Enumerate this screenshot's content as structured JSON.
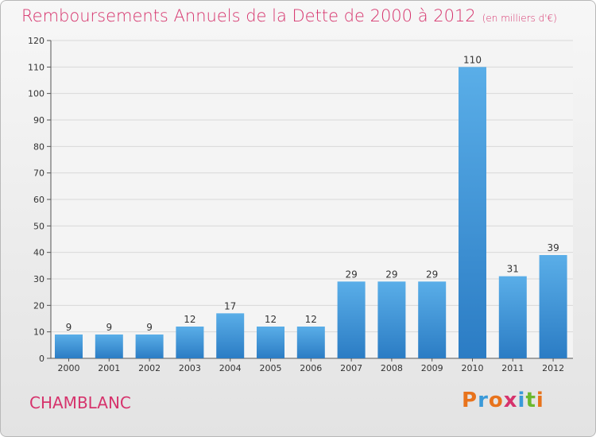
{
  "header": {
    "title": "Remboursements Annuels de la Dette de 2000 à 2012",
    "unit": "(en milliers d'€)"
  },
  "footer": {
    "commune": "CHAMBLANC",
    "logo": "Proxiti",
    "logo_colors": [
      "#e8731c",
      "#3a9ad9",
      "#e8731c",
      "#d6336c",
      "#3a9ad9",
      "#6bb82e",
      "#e8731c"
    ]
  },
  "colors": {
    "title": "#d6336c",
    "bar_top": "#5aaee8",
    "bar_bottom": "#2b7cc4",
    "grid": "#d8d8d8",
    "axis": "#555555"
  },
  "chart_data": {
    "type": "bar",
    "title": "Remboursements Annuels de la Dette de 2000 à 2012",
    "xlabel": "",
    "ylabel": "",
    "ylim": [
      0,
      120
    ],
    "yticks": [
      0,
      10,
      20,
      30,
      40,
      50,
      60,
      70,
      80,
      90,
      100,
      110,
      120
    ],
    "grid": true,
    "categories": [
      "2000",
      "2001",
      "2002",
      "2003",
      "2004",
      "2005",
      "2006",
      "2007",
      "2008",
      "2009",
      "2010",
      "2011",
      "2012"
    ],
    "values": [
      9,
      9,
      9,
      12,
      17,
      12,
      12,
      29,
      29,
      29,
      110,
      31,
      39
    ]
  }
}
